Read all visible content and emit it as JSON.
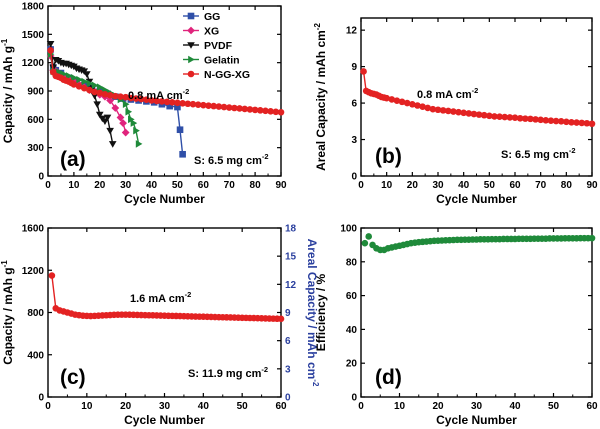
{
  "chart_data": [
    {
      "panel": "(a)",
      "type": "line",
      "xlabel": "Cycle Number",
      "ylabel": "Capacity / mAh g",
      "ylabel_sup": "-1",
      "xlim": [
        0,
        90
      ],
      "ylim": [
        0,
        1800
      ],
      "xticks": [
        0,
        10,
        20,
        30,
        40,
        50,
        60,
        70,
        80,
        90
      ],
      "yticks": [
        0,
        300,
        600,
        900,
        1200,
        1500,
        1800
      ],
      "legend_position": "top-right",
      "annotations": [
        {
          "text": "0.8 mA cm",
          "sup": "-2"
        },
        {
          "text": "S: 6.5 mg cm",
          "sup": "-2"
        }
      ],
      "series": [
        {
          "name": "GG",
          "color": "#2f4fa8",
          "marker": "square",
          "x": [
            1,
            2,
            3,
            5,
            8,
            11,
            14,
            17,
            20,
            23,
            26,
            29,
            32,
            35,
            38,
            41,
            44,
            47,
            50,
            51,
            52
          ],
          "y": [
            1340,
            1150,
            1120,
            1090,
            1040,
            1000,
            960,
            930,
            900,
            870,
            840,
            820,
            810,
            800,
            790,
            780,
            760,
            740,
            730,
            490,
            230
          ]
        },
        {
          "name": "XG",
          "color": "#e0247c",
          "marker": "diamond",
          "x": [
            1,
            2,
            3,
            4,
            6,
            8,
            10,
            12,
            14,
            16,
            18,
            20,
            22,
            24,
            26,
            28,
            29,
            30
          ],
          "y": [
            1270,
            1120,
            1110,
            1090,
            1060,
            1030,
            1000,
            970,
            940,
            910,
            880,
            860,
            840,
            800,
            720,
            620,
            560,
            460
          ]
        },
        {
          "name": "PVDF",
          "color": "#111111",
          "marker": "triangle-down",
          "x": [
            1,
            2,
            3,
            4,
            5,
            6,
            7,
            8,
            9,
            10,
            11,
            12,
            13,
            14,
            15,
            16,
            17,
            18,
            19,
            20,
            21,
            22,
            23,
            24,
            25
          ],
          "y": [
            1400,
            1150,
            1230,
            1220,
            1200,
            1190,
            1190,
            1180,
            1170,
            1160,
            1140,
            1130,
            1120,
            1110,
            1080,
            1000,
            920,
            850,
            760,
            650,
            610,
            580,
            620,
            480,
            340
          ]
        },
        {
          "name": "Gelatin",
          "color": "#1f8a3a",
          "marker": "triangle-right",
          "x": [
            1,
            2,
            3,
            4,
            5,
            6,
            8,
            10,
            12,
            14,
            16,
            18,
            20,
            22,
            24,
            26,
            28,
            30,
            31,
            32,
            33,
            34,
            35
          ],
          "y": [
            1290,
            1110,
            1100,
            1100,
            1090,
            1080,
            1060,
            1040,
            1020,
            1000,
            980,
            960,
            940,
            910,
            880,
            850,
            810,
            760,
            680,
            600,
            560,
            480,
            340
          ]
        },
        {
          "name": "N-GG-XG",
          "color": "#e32222",
          "marker": "circle",
          "x": [
            1,
            2,
            3,
            4,
            5,
            6,
            7,
            8,
            9,
            10,
            12,
            14,
            16,
            18,
            20,
            22,
            24,
            26,
            28,
            30,
            32,
            34,
            36,
            38,
            40,
            42,
            44,
            46,
            48,
            50,
            52,
            54,
            56,
            58,
            60,
            62,
            64,
            66,
            68,
            70,
            72,
            74,
            76,
            78,
            80,
            82,
            84,
            86,
            88,
            90
          ],
          "y": [
            1330,
            1100,
            1060,
            1050,
            1040,
            1020,
            1010,
            1000,
            985,
            970,
            950,
            930,
            910,
            890,
            880,
            865,
            855,
            845,
            840,
            835,
            825,
            820,
            815,
            808,
            800,
            795,
            790,
            785,
            780,
            775,
            770,
            765,
            760,
            755,
            750,
            745,
            740,
            735,
            730,
            725,
            720,
            715,
            710,
            705,
            700,
            695,
            690,
            685,
            680,
            675
          ]
        }
      ]
    },
    {
      "panel": "(b)",
      "type": "line",
      "xlabel": "Cycle Number",
      "ylabel": "Areal Capacity / mAh cm",
      "ylabel_sup": "-2",
      "xlim": [
        0,
        90
      ],
      "ylim": [
        0,
        13
      ],
      "xticks": [
        0,
        10,
        20,
        30,
        40,
        50,
        60,
        70,
        80,
        90
      ],
      "yticks": [
        0,
        3,
        6,
        9,
        12
      ],
      "annotations": [
        {
          "text": "0.8 mA cm",
          "sup": "-2"
        },
        {
          "text": "S: 6.5 mg cm",
          "sup": "-2"
        }
      ],
      "series": [
        {
          "color": "#e32222",
          "marker": "circle",
          "x": [
            1,
            2,
            3,
            4,
            5,
            6,
            7,
            8,
            9,
            10,
            12,
            14,
            16,
            18,
            20,
            22,
            24,
            26,
            28,
            30,
            32,
            34,
            36,
            38,
            40,
            42,
            44,
            46,
            48,
            50,
            52,
            54,
            56,
            58,
            60,
            62,
            64,
            66,
            68,
            70,
            72,
            74,
            76,
            78,
            80,
            82,
            84,
            86,
            88,
            90
          ],
          "y": [
            8.6,
            7.0,
            6.9,
            6.8,
            6.75,
            6.7,
            6.6,
            6.5,
            6.45,
            6.4,
            6.3,
            6.2,
            6.1,
            6.0,
            5.9,
            5.8,
            5.7,
            5.6,
            5.5,
            5.45,
            5.4,
            5.35,
            5.3,
            5.25,
            5.2,
            5.15,
            5.1,
            5.05,
            5.0,
            4.95,
            4.9,
            4.88,
            4.85,
            4.82,
            4.8,
            4.75,
            4.72,
            4.7,
            4.66,
            4.62,
            4.58,
            4.55,
            4.52,
            4.5,
            4.46,
            4.42,
            4.4,
            4.37,
            4.34,
            4.3
          ]
        }
      ]
    },
    {
      "panel": "(c)",
      "type": "line",
      "xlabel": "Cycle Number",
      "ylabel": "Capacity / mAh g",
      "ylabel_sup": "-1",
      "y2label": "Areal Capacity / mAh cm",
      "y2label_sup": "-2",
      "xlim": [
        0,
        60
      ],
      "ylim": [
        0,
        1600
      ],
      "y2lim": [
        0,
        18
      ],
      "xticks": [
        0,
        10,
        20,
        30,
        40,
        50,
        60
      ],
      "yticks": [
        0,
        400,
        800,
        1200,
        1600
      ],
      "y2ticks": [
        0,
        3,
        6,
        9,
        12,
        15,
        18
      ],
      "annotations": [
        {
          "text": "1.6 mA cm",
          "sup": "-2"
        },
        {
          "text": "S: 11.9 mg cm",
          "sup": "-2"
        }
      ],
      "series": [
        {
          "color": "#e32222",
          "marker": "circle",
          "x": [
            1,
            2,
            3,
            4,
            5,
            6,
            7,
            8,
            9,
            10,
            11,
            12,
            13,
            14,
            15,
            16,
            17,
            18,
            19,
            20,
            21,
            22,
            23,
            24,
            25,
            26,
            27,
            28,
            29,
            30,
            31,
            32,
            33,
            34,
            35,
            36,
            37,
            38,
            39,
            40,
            41,
            42,
            43,
            44,
            45,
            46,
            47,
            48,
            49,
            50,
            51,
            52,
            53,
            54,
            55,
            56,
            57,
            58,
            59,
            60
          ],
          "y": [
            1150,
            840,
            820,
            810,
            800,
            790,
            780,
            775,
            770,
            768,
            766,
            768,
            770,
            772,
            774,
            776,
            778,
            779,
            780,
            780,
            779,
            778,
            777,
            776,
            775,
            774,
            773,
            772,
            771,
            770,
            769,
            768,
            767,
            766,
            765,
            764,
            763,
            762,
            761,
            760,
            759,
            758,
            757,
            756,
            755,
            754,
            753,
            752,
            751,
            750,
            749,
            748,
            747,
            746,
            745,
            744,
            743,
            742,
            741,
            740
          ]
        }
      ]
    },
    {
      "panel": "(d)",
      "type": "scatter",
      "xlabel": "Cycle Number",
      "ylabel": "Efficiency / %",
      "xlim": [
        0,
        60
      ],
      "ylim": [
        0,
        100
      ],
      "xticks": [
        0,
        10,
        20,
        30,
        40,
        50,
        60
      ],
      "yticks": [
        0,
        20,
        40,
        60,
        80,
        100
      ],
      "series": [
        {
          "color": "#1f8a3a",
          "marker": "circle",
          "x": [
            1,
            2,
            3,
            4,
            5,
            6,
            7,
            8,
            9,
            10,
            11,
            12,
            13,
            14,
            15,
            16,
            17,
            18,
            19,
            20,
            21,
            22,
            23,
            24,
            25,
            26,
            27,
            28,
            29,
            30,
            31,
            32,
            33,
            34,
            35,
            36,
            37,
            38,
            39,
            40,
            41,
            42,
            43,
            44,
            45,
            46,
            47,
            48,
            49,
            50,
            51,
            52,
            53,
            54,
            55,
            56,
            57,
            58,
            59,
            60
          ],
          "y": [
            91,
            95,
            90,
            88,
            87,
            87,
            88,
            88.5,
            89,
            89.5,
            90,
            90.5,
            91,
            91.3,
            91.6,
            91.8,
            92,
            92.2,
            92.4,
            92.5,
            92.6,
            92.7,
            92.8,
            92.9,
            93,
            93,
            93.1,
            93.1,
            93.2,
            93.2,
            93.3,
            93.3,
            93.3,
            93.4,
            93.4,
            93.4,
            93.5,
            93.5,
            93.5,
            93.5,
            93.6,
            93.6,
            93.6,
            93.6,
            93.7,
            93.7,
            93.7,
            93.7,
            93.8,
            93.8,
            93.8,
            93.8,
            93.9,
            93.9,
            93.9,
            93.9,
            94,
            94,
            94,
            94
          ]
        }
      ]
    }
  ]
}
